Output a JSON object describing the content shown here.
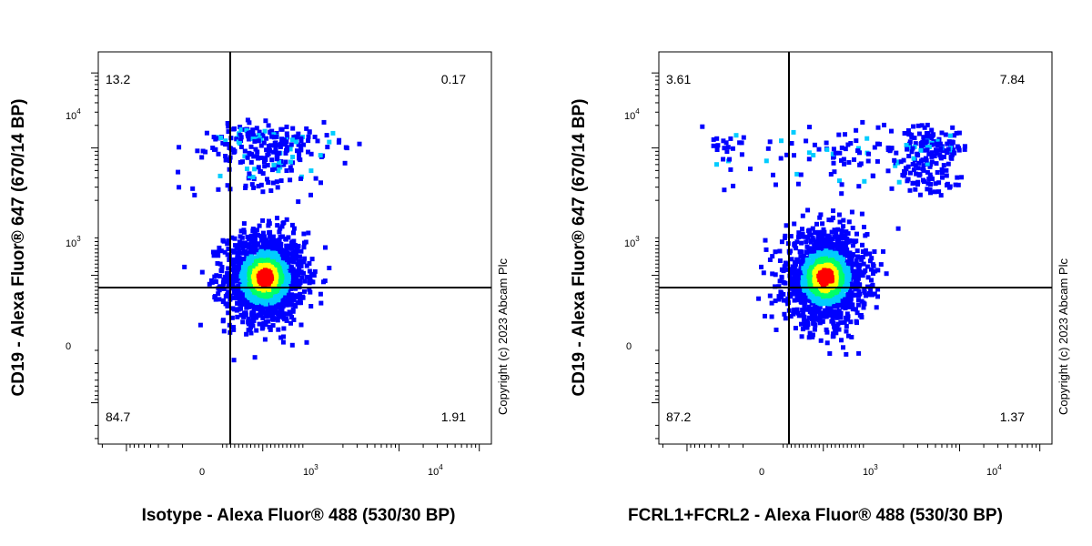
{
  "chart_data": [
    {
      "type": "scatter",
      "subtype": "flow-cytometry-density-dot-plot",
      "xlabel": "Isotype - Alexa Fluor® 488 (530/30 BP)",
      "ylabel": "CD19 - Alexa Fluor® 647 (670/14 BP)",
      "x_scale": "biexponential",
      "y_scale": "biexponential",
      "x_ticks": [
        {
          "base": "0",
          "exp": ""
        },
        {
          "base": "10",
          "exp": "3"
        },
        {
          "base": "10",
          "exp": "4"
        }
      ],
      "y_ticks": [
        {
          "base": "0",
          "exp": ""
        },
        {
          "base": "10",
          "exp": "3"
        },
        {
          "base": "10",
          "exp": "4"
        }
      ],
      "quadrants": {
        "upper_left": "13.2",
        "upper_right": "0.17",
        "lower_left": "84.7",
        "lower_right": "1.91"
      },
      "copyright": "Copyright (c) 2023 Abcam Plc",
      "populations": [
        {
          "name": "",
          "cx": 0,
          "cy": 0,
          "sx": 50,
          "sy": 60,
          "n": 1500,
          "dense": true
        },
        {
          "name": "",
          "cx": 0,
          "cy": 1100,
          "sx": 80,
          "sy": 500,
          "n": 260,
          "dense": false
        }
      ]
    },
    {
      "type": "scatter",
      "subtype": "flow-cytometry-density-dot-plot",
      "xlabel": "FCRL1+FCRL2 - Alexa Fluor® 488 (530/30 BP)",
      "ylabel": "CD19 - Alexa Fluor® 647 (670/14 BP)",
      "x_scale": "biexponential",
      "y_scale": "biexponential",
      "x_ticks": [
        {
          "base": "0",
          "exp": ""
        },
        {
          "base": "10",
          "exp": "3"
        },
        {
          "base": "10",
          "exp": "4"
        }
      ],
      "y_ticks": [
        {
          "base": "0",
          "exp": ""
        },
        {
          "base": "10",
          "exp": "3"
        },
        {
          "base": "10",
          "exp": "4"
        }
      ],
      "quadrants": {
        "upper_left": "3.61",
        "upper_right": "7.84",
        "lower_left": "87.2",
        "lower_right": "1.37"
      },
      "copyright": "Copyright (c) 2023 Abcam Plc",
      "populations": [
        {
          "name": "",
          "cx": 0,
          "cy": 0,
          "sx": 50,
          "sy": 60,
          "n": 1500,
          "dense": true
        },
        {
          "name": "",
          "cx": 300,
          "cy": 900,
          "sx": 300,
          "sy": 500,
          "n": 300,
          "dense": false
        }
      ]
    }
  ],
  "colors": {
    "density_low": "#0000ff",
    "density_mid_low": "#00ccff",
    "density_mid": "#00ff66",
    "density_mid_high": "#ffff00",
    "density_high": "#ff0000",
    "gate": "#000000"
  }
}
